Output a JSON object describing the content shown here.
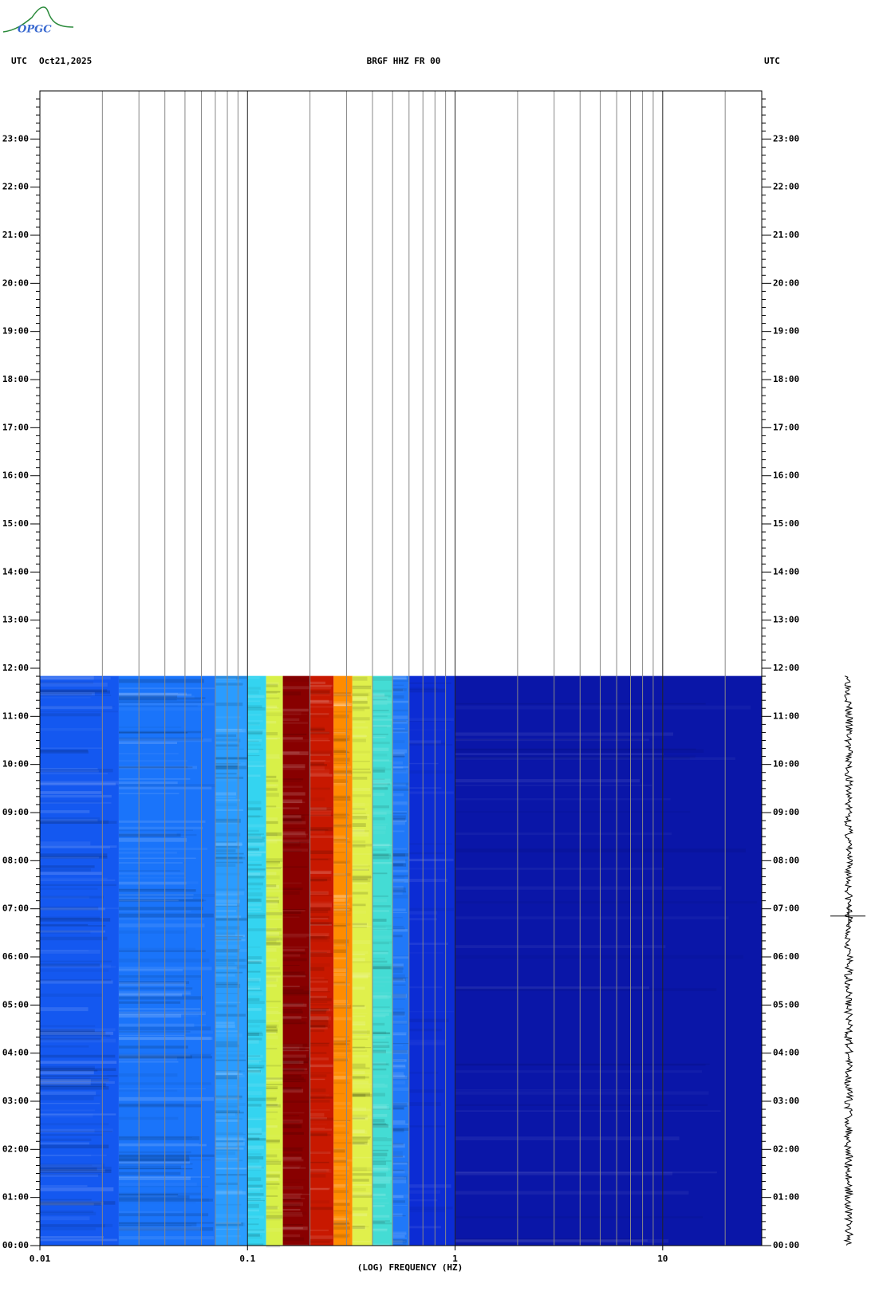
{
  "chart_data": {
    "type": "spectrogram",
    "logo": "OPGC",
    "left_label": "UTC",
    "date": "Oct21,2025",
    "title": "BRGF HHZ FR 00",
    "right_label": "UTC",
    "xlabel": "(LOG) FREQUENCY (HZ)",
    "xscale": "log",
    "xlim": [
      0.01,
      30
    ],
    "xticks": [
      0.01,
      0.1,
      1,
      10
    ],
    "xgrid": [
      0.02,
      0.03,
      0.04,
      0.05,
      0.06,
      0.07,
      0.08,
      0.09,
      0.1,
      0.2,
      0.3,
      0.4,
      0.5,
      0.6,
      0.7,
      0.8,
      0.9,
      1,
      2,
      3,
      4,
      5,
      6,
      7,
      8,
      9,
      10,
      20
    ],
    "ylim": [
      0,
      24
    ],
    "yticks": [
      {
        "value": 0,
        "label": "00:00"
      },
      {
        "value": 1,
        "label": "01:00"
      },
      {
        "value": 2,
        "label": "02:00"
      },
      {
        "value": 3,
        "label": "03:00"
      },
      {
        "value": 4,
        "label": "04:00"
      },
      {
        "value": 5,
        "label": "05:00"
      },
      {
        "value": 6,
        "label": "06:00"
      },
      {
        "value": 7,
        "label": "07:00"
      },
      {
        "value": 8,
        "label": "08:00"
      },
      {
        "value": 9,
        "label": "09:00"
      },
      {
        "value": 10,
        "label": "10:00"
      },
      {
        "value": 11,
        "label": "11:00"
      },
      {
        "value": 12,
        "label": "12:00"
      },
      {
        "value": 13,
        "label": "13:00"
      },
      {
        "value": 14,
        "label": "14:00"
      },
      {
        "value": 15,
        "label": "15:00"
      },
      {
        "value": 16,
        "label": "16:00"
      },
      {
        "value": 17,
        "label": "17:00"
      },
      {
        "value": 18,
        "label": "18:00"
      },
      {
        "value": 19,
        "label": "19:00"
      },
      {
        "value": 20,
        "label": "20:00"
      },
      {
        "value": 21,
        "label": "21:00"
      },
      {
        "value": 22,
        "label": "22:00"
      },
      {
        "value": 23,
        "label": "23:00"
      }
    ],
    "data_end": 11.84,
    "bands": [
      {
        "from": 0.01,
        "to": 0.024,
        "color": "#1458f0"
      },
      {
        "from": 0.024,
        "to": 0.07,
        "color": "#1a74fa"
      },
      {
        "from": 0.07,
        "to": 0.1,
        "color": "#2a9cff"
      },
      {
        "from": 0.1,
        "to": 0.123,
        "color": "#34d4f0"
      },
      {
        "from": 0.123,
        "to": 0.148,
        "color": "#d8f048"
      },
      {
        "from": 0.148,
        "to": 0.2,
        "color": "#880000"
      },
      {
        "from": 0.2,
        "to": 0.26,
        "color": "#c81800"
      },
      {
        "from": 0.26,
        "to": 0.32,
        "color": "#ff8c00"
      },
      {
        "from": 0.32,
        "to": 0.4,
        "color": "#e0f04c"
      },
      {
        "from": 0.4,
        "to": 0.5,
        "color": "#44dcd4"
      },
      {
        "from": 0.5,
        "to": 0.6,
        "color": "#2078f8"
      },
      {
        "from": 0.6,
        "to": 1,
        "color": "#0c2cd4"
      },
      {
        "from": 1,
        "to": 30,
        "color": "#0a16a8"
      }
    ]
  }
}
